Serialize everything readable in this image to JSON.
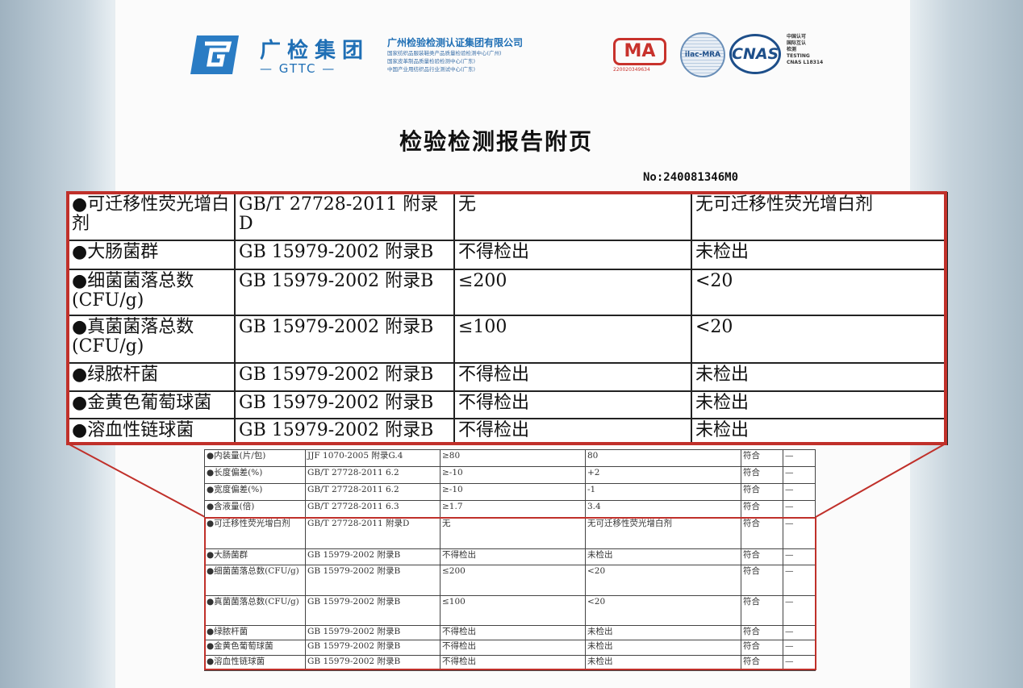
{
  "header": {
    "brand_cn": "广检集团",
    "brand_en": "GTTC",
    "company": "广州检验检测认证集团有限公司",
    "sub_lines": [
      "国家纺织品服装鞋类产品质量检验检测中心(广州)",
      "国家皮革制品质量检验检测中心(广东)",
      "中国产业用纺织品行业测试中心(广东)"
    ],
    "cma": "MA",
    "cma_no": "220020349634",
    "ilac": "ilac-MRA",
    "cnas": "CNAS",
    "cnas_side": "中国认可\n国际互认\n检测\nTESTING\nCNAS L18314"
  },
  "title": "检验检测报告附页",
  "report_no": "No:240081346M0",
  "zoomed_table": [
    [
      "●可迁移性荧光增白剂",
      "GB/T 27728-2011 附录D",
      "无",
      "无可迁移性荧光增白剂"
    ],
    [
      "●大肠菌群",
      "GB 15979-2002 附录B",
      "不得检出",
      "未检出"
    ],
    [
      "●细菌菌落总数(CFU/g)",
      "GB 15979-2002 附录B",
      "≤200",
      "<20"
    ],
    [
      "●真菌菌落总数(CFU/g)",
      "GB 15979-2002 附录B",
      "≤100",
      "<20"
    ],
    [
      "●绿脓杆菌",
      "GB 15979-2002 附录B",
      "不得检出",
      "未检出"
    ],
    [
      "●金黄色葡萄球菌",
      "GB 15979-2002 附录B",
      "不得检出",
      "未检出"
    ],
    [
      "●溶血性链球菌",
      "GB 15979-2002 附录B",
      "不得检出",
      "未检出"
    ]
  ],
  "full_table": [
    [
      "●内装量(片/包)",
      "JJF 1070-2005 附录G.4",
      "≥80",
      "80",
      "符合",
      "—"
    ],
    [
      "●长度偏差(%)",
      "GB/T 27728-2011 6.2",
      "≥-10",
      "+2",
      "符合",
      "—"
    ],
    [
      "●宽度偏差(%)",
      "GB/T 27728-2011 6.2",
      "≥-10",
      "-1",
      "符合",
      "—"
    ],
    [
      "●含液量(倍)",
      "GB/T 27728-2011 6.3",
      "≥1.7",
      "3.4",
      "符合",
      "—"
    ],
    [
      "●可迁移性荧光增白剂",
      "GB/T 27728-2011 附录D",
      "无",
      "无可迁移性荧光增白剂",
      "符合",
      "—"
    ],
    [
      "●大肠菌群",
      "GB 15979-2002 附录B",
      "不得检出",
      "未检出",
      "符合",
      "—"
    ],
    [
      "●细菌菌落总数(CFU/g)",
      "GB 15979-2002 附录B",
      "≤200",
      "<20",
      "符合",
      "—"
    ],
    [
      "●真菌菌落总数(CFU/g)",
      "GB 15979-2002 附录B",
      "≤100",
      "<20",
      "符合",
      "—"
    ],
    [
      "●绿脓杆菌",
      "GB 15979-2002 附录B",
      "不得检出",
      "未检出",
      "符合",
      "—"
    ],
    [
      "●金黄色葡萄球菌",
      "GB 15979-2002 附录B",
      "不得检出",
      "未检出",
      "符合",
      "—"
    ],
    [
      "●溶血性链球菌",
      "GB 15979-2002 附录B",
      "不得检出",
      "未检出",
      "符合",
      "—"
    ]
  ],
  "colors": {
    "brand": "#1f6fb5",
    "highlight": "#c0302a"
  }
}
